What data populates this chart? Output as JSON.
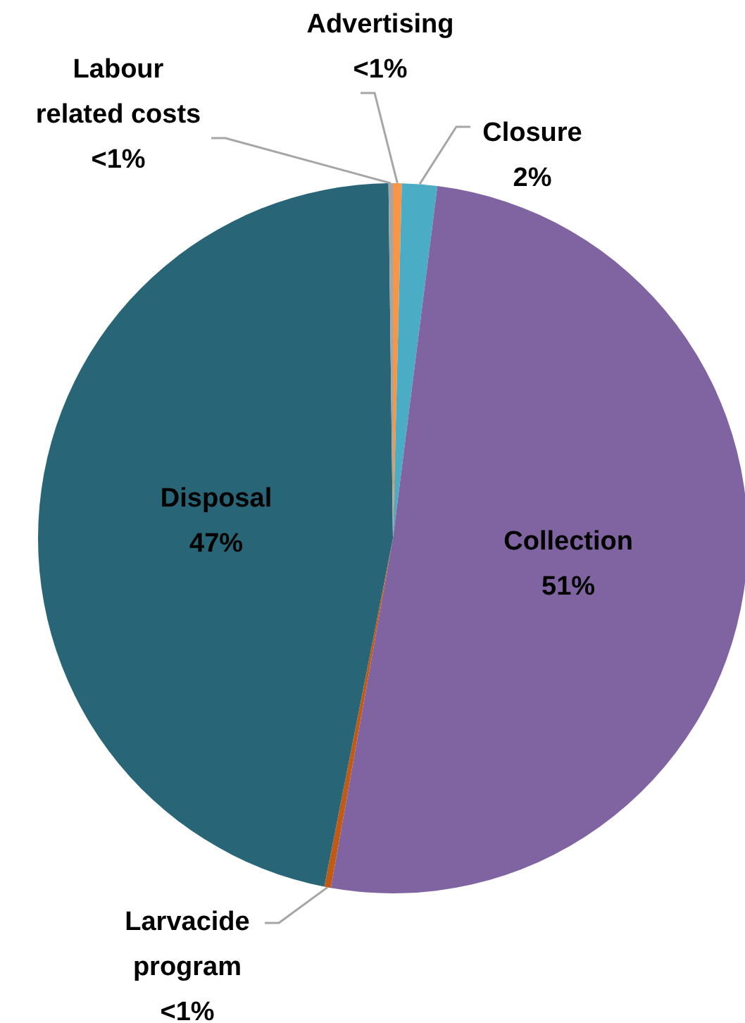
{
  "chart_data": {
    "type": "pie",
    "categories": [
      "Advertising",
      "Closure",
      "Collection",
      "Larvacide program",
      "Disposal",
      "Labour related costs"
    ],
    "values": [
      0.4,
      1.6,
      50.8,
      0.3,
      46.7,
      0.2
    ],
    "value_labels": [
      "<1%",
      "2%",
      "51%",
      "<1%",
      "47%",
      "<1%"
    ],
    "colors": [
      "#f79646",
      "#4bacc6",
      "#8064a2",
      "#c05a14",
      "#276577",
      "#a5a5a5"
    ]
  }
}
